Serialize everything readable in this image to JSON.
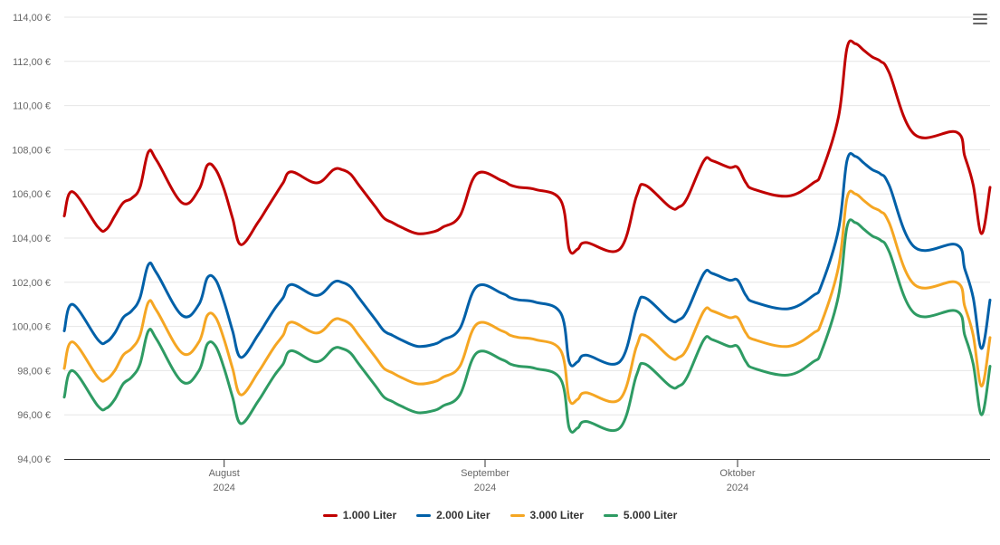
{
  "menu": {
    "icon": "hamburger-menu-icon"
  },
  "chart_data": {
    "type": "line",
    "title": "",
    "xlabel": "",
    "ylabel": "",
    "x_start": "2024-07-13",
    "x_end": "2024-10-31",
    "ylim": [
      94,
      114
    ],
    "y_ticks": [
      {
        "value": 94,
        "label": "94,00 €"
      },
      {
        "value": 96,
        "label": "96,00 €"
      },
      {
        "value": 98,
        "label": "98,00 €"
      },
      {
        "value": 100,
        "label": "100,00 €"
      },
      {
        "value": 102,
        "label": "102,00 €"
      },
      {
        "value": 104,
        "label": "104,00 €"
      },
      {
        "value": 106,
        "label": "106,00 €"
      },
      {
        "value": 108,
        "label": "108,00 €"
      },
      {
        "value": 110,
        "label": "110,00 €"
      },
      {
        "value": 112,
        "label": "112,00 €"
      },
      {
        "value": 114,
        "label": "114,00 €"
      }
    ],
    "x_ticks": [
      {
        "date": "2024-08-01",
        "month": "August",
        "year": "2024"
      },
      {
        "date": "2024-09-01",
        "month": "September",
        "year": "2024"
      },
      {
        "date": "2024-10-01",
        "month": "Oktober",
        "year": "2024"
      }
    ],
    "grid": true,
    "legend_position": "bottom-center",
    "dates": [
      "2024-07-13",
      "2024-07-14",
      "2024-07-17",
      "2024-07-18",
      "2024-07-19",
      "2024-07-20",
      "2024-07-21",
      "2024-07-22",
      "2024-07-23",
      "2024-07-24",
      "2024-07-27",
      "2024-07-29",
      "2024-07-30",
      "2024-07-31",
      "2024-08-01",
      "2024-08-02",
      "2024-08-03",
      "2024-08-05",
      "2024-08-06",
      "2024-08-07",
      "2024-08-08",
      "2024-08-09",
      "2024-08-12",
      "2024-08-14",
      "2024-08-15",
      "2024-08-16",
      "2024-08-17",
      "2024-08-19",
      "2024-08-20",
      "2024-08-21",
      "2024-08-22",
      "2024-08-24",
      "2024-08-26",
      "2024-08-27",
      "2024-08-29",
      "2024-08-31",
      "2024-09-03",
      "2024-09-04",
      "2024-09-05",
      "2024-09-07",
      "2024-09-10",
      "2024-09-11",
      "2024-09-12",
      "2024-09-13",
      "2024-09-17",
      "2024-09-19",
      "2024-09-20",
      "2024-09-23",
      "2024-09-24",
      "2024-09-25",
      "2024-09-27",
      "2024-09-28",
      "2024-09-30",
      "2024-10-01",
      "2024-10-02",
      "2024-10-03",
      "2024-10-07",
      "2024-10-10",
      "2024-10-11",
      "2024-10-13",
      "2024-10-14",
      "2024-10-15",
      "2024-10-16",
      "2024-10-17",
      "2024-10-18",
      "2024-10-19",
      "2024-10-22",
      "2024-10-27",
      "2024-10-28",
      "2024-10-29",
      "2024-10-30",
      "2024-10-31"
    ],
    "series": [
      {
        "name": "1.000 Liter",
        "color": "#c00000",
        "values": [
          105.0,
          106.1,
          104.5,
          104.4,
          105.0,
          105.6,
          105.8,
          106.3,
          107.9,
          107.5,
          105.6,
          106.2,
          107.3,
          107.1,
          106.2,
          104.9,
          103.7,
          104.7,
          105.3,
          105.9,
          106.5,
          107.0,
          106.5,
          107.1,
          107.1,
          106.9,
          106.4,
          105.4,
          104.9,
          104.7,
          104.5,
          104.2,
          104.3,
          104.5,
          105.0,
          106.9,
          106.6,
          106.4,
          106.3,
          106.2,
          105.7,
          103.5,
          103.5,
          103.8,
          103.5,
          105.9,
          106.4,
          105.4,
          105.4,
          105.8,
          107.5,
          107.5,
          107.2,
          107.2,
          106.5,
          106.2,
          105.9,
          106.5,
          107.0,
          109.5,
          112.6,
          112.8,
          112.5,
          112.2,
          112.0,
          111.5,
          108.7,
          108.8,
          107.7,
          106.4,
          104.2,
          106.3
        ]
      },
      {
        "name": "2.000 Liter",
        "color": "#0060a8",
        "values": [
          99.8,
          101.0,
          99.4,
          99.3,
          99.7,
          100.4,
          100.7,
          101.3,
          102.8,
          102.4,
          100.5,
          101.0,
          102.2,
          102.1,
          101.1,
          99.8,
          98.6,
          99.6,
          100.2,
          100.8,
          101.3,
          101.9,
          101.4,
          102.0,
          102.0,
          101.8,
          101.3,
          100.3,
          99.8,
          99.6,
          99.4,
          99.1,
          99.2,
          99.4,
          99.9,
          101.8,
          101.5,
          101.3,
          101.2,
          101.1,
          100.6,
          98.4,
          98.4,
          98.7,
          98.4,
          100.8,
          101.3,
          100.3,
          100.3,
          100.7,
          102.4,
          102.4,
          102.1,
          102.1,
          101.4,
          101.1,
          100.8,
          101.4,
          101.9,
          104.4,
          107.5,
          107.7,
          107.4,
          107.1,
          106.9,
          106.4,
          103.6,
          103.7,
          102.6,
          101.3,
          99.0,
          101.2
        ]
      },
      {
        "name": "3.000 Liter",
        "color": "#f5a623",
        "values": [
          98.1,
          99.3,
          97.7,
          97.6,
          98.0,
          98.7,
          99.0,
          99.6,
          101.1,
          100.7,
          98.8,
          99.3,
          100.5,
          100.4,
          99.4,
          98.1,
          96.9,
          97.9,
          98.5,
          99.1,
          99.6,
          100.2,
          99.7,
          100.3,
          100.3,
          100.1,
          99.6,
          98.6,
          98.1,
          97.9,
          97.7,
          97.4,
          97.5,
          97.7,
          98.2,
          100.1,
          99.8,
          99.6,
          99.5,
          99.4,
          98.9,
          96.7,
          96.7,
          97.0,
          96.7,
          99.1,
          99.6,
          98.6,
          98.6,
          99.0,
          100.7,
          100.7,
          100.4,
          100.4,
          99.7,
          99.4,
          99.1,
          99.7,
          100.2,
          102.7,
          105.8,
          106.0,
          105.7,
          105.4,
          105.2,
          104.7,
          101.9,
          102.0,
          100.9,
          99.6,
          97.3,
          99.5
        ]
      },
      {
        "name": "5.000 Liter",
        "color": "#2e9b63",
        "values": [
          96.8,
          98.0,
          96.4,
          96.3,
          96.7,
          97.4,
          97.7,
          98.3,
          99.8,
          99.4,
          97.5,
          98.0,
          99.2,
          99.1,
          98.1,
          96.8,
          95.6,
          96.6,
          97.2,
          97.8,
          98.3,
          98.9,
          98.4,
          99.0,
          99.0,
          98.8,
          98.3,
          97.3,
          96.8,
          96.6,
          96.4,
          96.1,
          96.2,
          96.4,
          96.9,
          98.8,
          98.5,
          98.3,
          98.2,
          98.1,
          97.6,
          95.4,
          95.4,
          95.7,
          95.4,
          97.8,
          98.3,
          97.3,
          97.3,
          97.7,
          99.4,
          99.4,
          99.1,
          99.1,
          98.4,
          98.1,
          97.8,
          98.4,
          98.9,
          101.4,
          104.5,
          104.7,
          104.4,
          104.1,
          103.9,
          103.4,
          100.6,
          100.7,
          99.6,
          98.3,
          96.0,
          98.2
        ]
      }
    ]
  }
}
